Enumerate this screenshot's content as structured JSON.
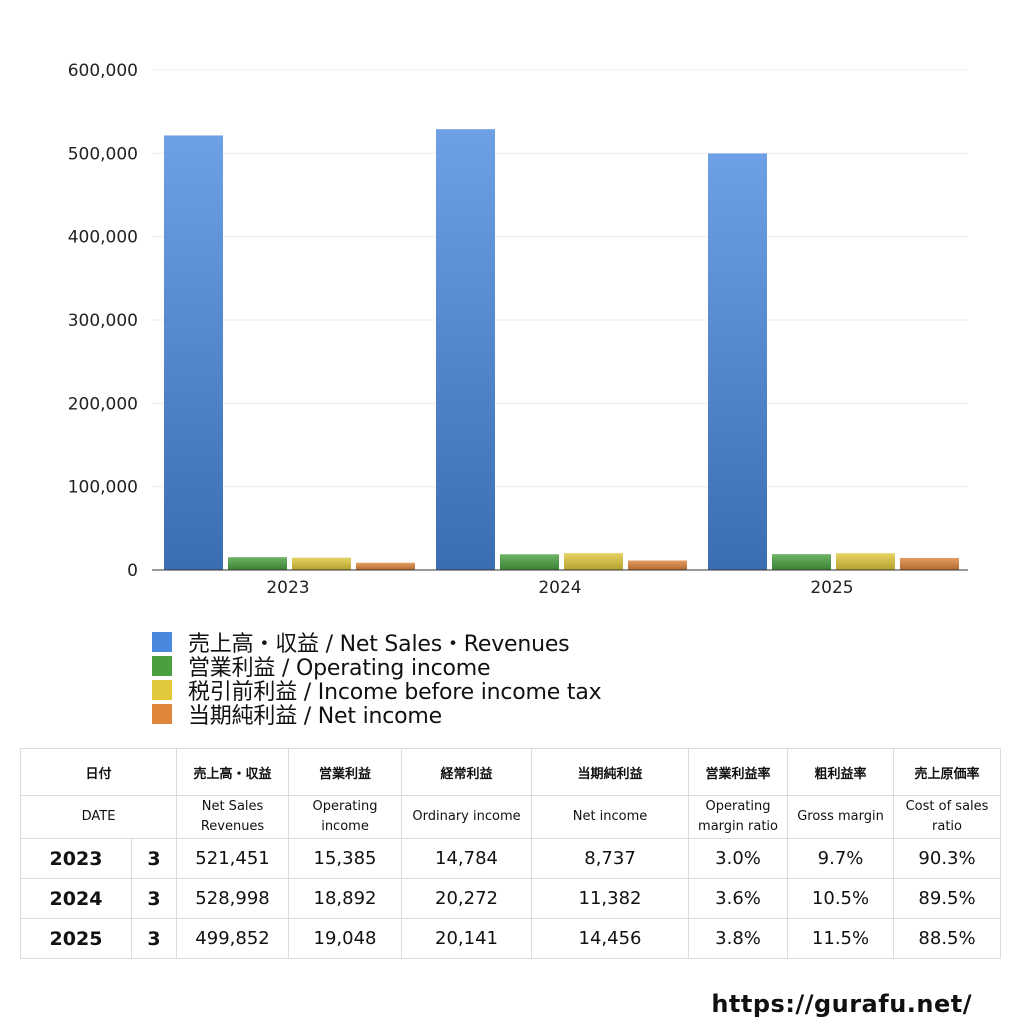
{
  "chart_data": {
    "type": "bar",
    "categories": [
      "2023",
      "2024",
      "2025"
    ],
    "ylim": [
      0,
      600000
    ],
    "yticks": [
      "600,000",
      "500,000",
      "400,000",
      "300,000",
      "200,000",
      "100,000",
      "0"
    ],
    "ytick_values": [
      600000,
      500000,
      400000,
      300000,
      200000,
      100000,
      0
    ],
    "grid": true,
    "legend_position": "bottom-left",
    "series": [
      {
        "name": "売上高・収益 / Net Sales・Revenues",
        "color": "#4a88e0",
        "values": [
          521451,
          528998,
          499852
        ]
      },
      {
        "name": "営業利益 / Operating income",
        "color": "#4aa040",
        "values": [
          15385,
          18892,
          19048
        ]
      },
      {
        "name": "税引前利益 / Income before income tax",
        "color": "#e0c83a",
        "values": [
          14784,
          20272,
          20141
        ]
      },
      {
        "name": "当期純利益 / Net income",
        "color": "#e0843a",
        "values": [
          8737,
          11382,
          14456
        ]
      }
    ]
  },
  "table": {
    "header_jp": {
      "date": "日付",
      "sales": "売上高・収益",
      "operating": "営業利益",
      "ordinary": "経常利益",
      "net": "当期純利益",
      "op_margin": "営業利益率",
      "gross_margin": "粗利益率",
      "cost_ratio": "売上原価率"
    },
    "header_en": {
      "date": "DATE",
      "sales_1": "Net Sales",
      "sales_2": "Revenues",
      "operating_1": "Operating",
      "operating_2": "income",
      "ordinary": "Ordinary income",
      "net": "Net income",
      "op_margin_1": "Operating",
      "op_margin_2": "margin ratio",
      "gross_margin": "Gross margin",
      "cost_ratio_1": "Cost of sales",
      "cost_ratio_2": "ratio"
    },
    "rows": [
      {
        "year": "2023",
        "month": "3",
        "sales": "521,451",
        "operating": "15,385",
        "ordinary": "14,784",
        "net": "8,737",
        "op_margin": "3.0%",
        "gross_margin": "9.7%",
        "cost_ratio": "90.3%"
      },
      {
        "year": "2024",
        "month": "3",
        "sales": "528,998",
        "operating": "18,892",
        "ordinary": "20,272",
        "net": "11,382",
        "op_margin": "3.6%",
        "gross_margin": "10.5%",
        "cost_ratio": "89.5%"
      },
      {
        "year": "2025",
        "month": "3",
        "sales": "499,852",
        "operating": "19,048",
        "ordinary": "20,141",
        "net": "14,456",
        "op_margin": "3.8%",
        "gross_margin": "11.5%",
        "cost_ratio": "88.5%"
      }
    ]
  },
  "footer": {
    "url": "https://gurafu.net/"
  }
}
